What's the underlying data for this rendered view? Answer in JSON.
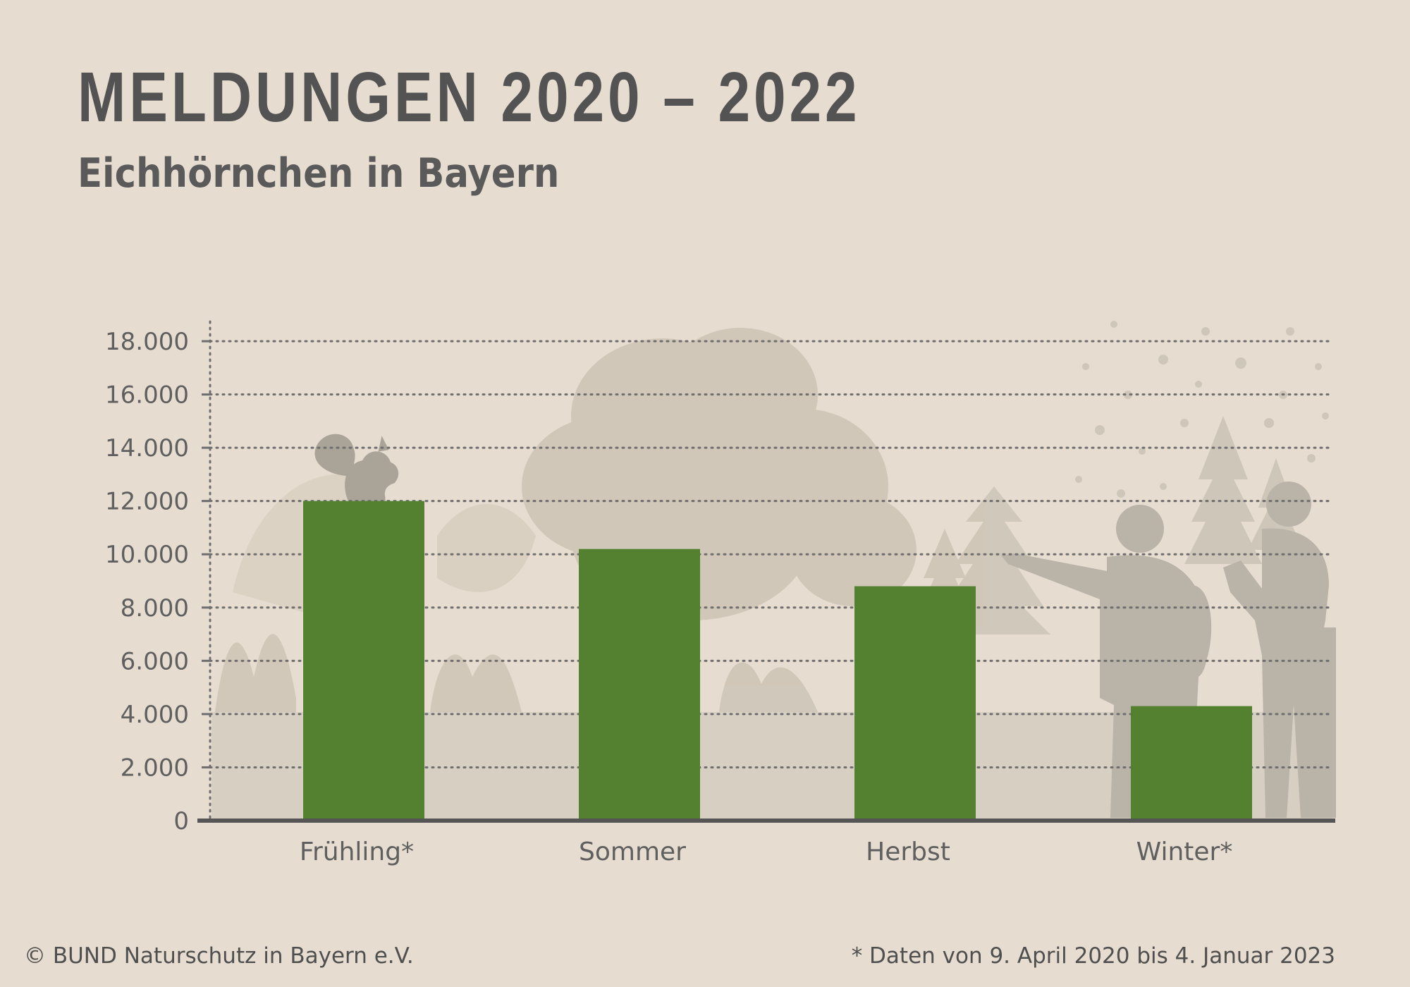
{
  "header": {
    "title": "MELDUNGEN 2020 – 2022",
    "subtitle": "Eichhörnchen in Bayern"
  },
  "footer": {
    "copyright": "© BUND Naturschutz in Bayern e.V.",
    "note": "* Daten von 9. April 2020 bis 4. Januar 2023"
  },
  "colors": {
    "background": "#e6ddd0",
    "bar": "#548130",
    "axis": "#555555",
    "grid": "#6e6e6e",
    "silhouette": "#b9b3a8"
  },
  "chart_data": {
    "type": "bar",
    "title": "MELDUNGEN 2020 – 2022",
    "subtitle": "Eichhörnchen in Bayern",
    "xlabel": "",
    "ylabel": "",
    "categories": [
      "Frühling*",
      "Sommer",
      "Herbst",
      "Winter*"
    ],
    "values": [
      12000,
      10200,
      8800,
      4300
    ],
    "ylim": [
      0,
      18000
    ],
    "yticks": [
      0,
      2000,
      4000,
      6000,
      8000,
      10000,
      12000,
      14000,
      16000,
      18000
    ],
    "ytick_labels": [
      "0",
      "2.000",
      "4.000",
      "6.000",
      "8.000",
      "10.000",
      "12.000",
      "14.000",
      "16.000",
      "18.000"
    ],
    "grid": true
  }
}
